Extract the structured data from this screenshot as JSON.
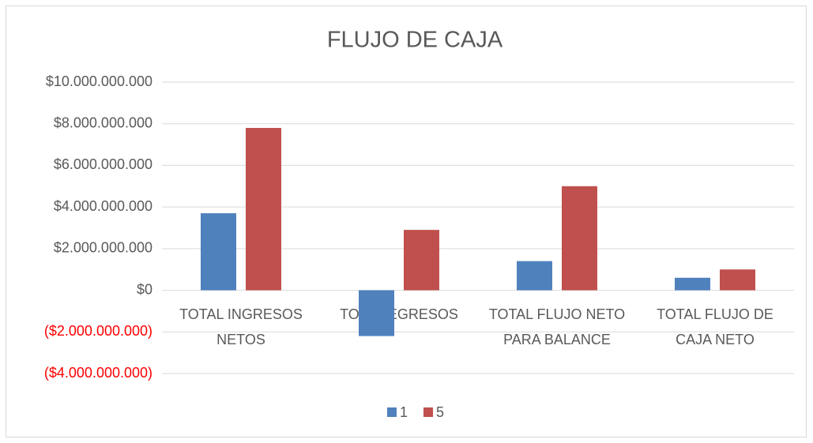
{
  "chart_data": {
    "type": "bar",
    "title": "FLUJO DE CAJA",
    "categories": [
      "TOTAL INGRESOS NETOS",
      "TOTAL EGRESOS",
      "TOTAL FLUJO NETO PARA BALANCE",
      "TOTAL FLUJO DE CAJA NETO"
    ],
    "series": [
      {
        "name": "1",
        "color": "#4f81bd",
        "values": [
          3700000000,
          -2200000000,
          1400000000,
          600000000
        ]
      },
      {
        "name": "5",
        "color": "#c0504d",
        "values": [
          7800000000,
          2900000000,
          5000000000,
          1000000000
        ]
      }
    ],
    "ylim": [
      -4000000000,
      10000000000
    ],
    "yticks": [
      {
        "value": -4000000000,
        "label": "($4.000.000.000)"
      },
      {
        "value": -2000000000,
        "label": "($2.000.000.000)"
      },
      {
        "value": 0,
        "label": "$0"
      },
      {
        "value": 2000000000,
        "label": "$2.000.000.000"
      },
      {
        "value": 4000000000,
        "label": "$4.000.000.000"
      },
      {
        "value": 6000000000,
        "label": "$6.000.000.000"
      },
      {
        "value": 8000000000,
        "label": "$8.000.000.000"
      },
      {
        "value": 10000000000,
        "label": "$10.000.000.000"
      }
    ],
    "negative_tick_color": "#ff0000",
    "grid": true,
    "legend": "bottom"
  }
}
